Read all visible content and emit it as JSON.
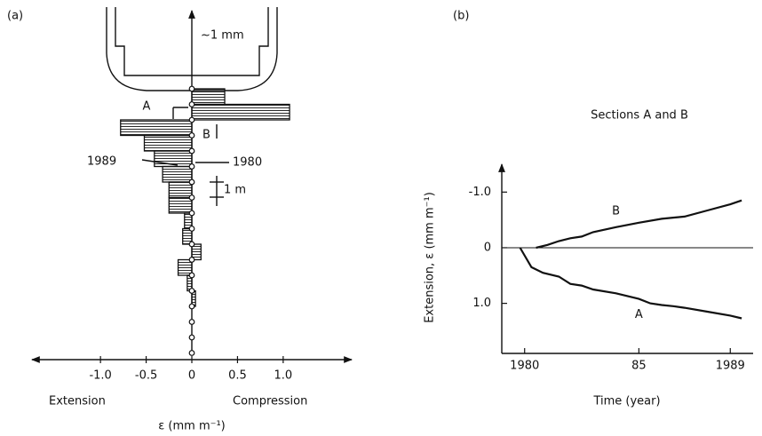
{
  "chart_data": [
    {
      "type": "hbar",
      "panel": "(a)",
      "xlabel": "ε (mm m⁻¹)",
      "annotations": [
        "~1 mm",
        "A",
        "B",
        "1989",
        "1980",
        "1 m",
        "Extension",
        "Compression"
      ],
      "categories": [
        null,
        null,
        null,
        null,
        null,
        null,
        null,
        null,
        null,
        null,
        null,
        null,
        null,
        null
      ],
      "values": [
        0.36,
        1.07,
        -0.78,
        -0.52,
        -0.41,
        -0.32,
        -0.25,
        -0.25,
        -0.08,
        -0.1,
        0.1,
        -0.15,
        -0.05,
        0.04
      ],
      "color": "#111111",
      "xlim": [
        -1.75,
        1.75
      ],
      "xticks": [
        {
          "value": -1,
          "label": "-1.0"
        },
        -0.5,
        0,
        0.5,
        {
          "value": 1,
          "label": "1.0"
        }
      ]
    },
    {
      "type": "line",
      "panel": "(b)",
      "title": "Sections A and B",
      "xlabel": "Time (year)",
      "ylabel": "Extension, ε (mm m⁻¹)",
      "series": [
        {
          "name": "B",
          "color": "#111111",
          "x": [
            1980.5,
            1981,
            1981.5,
            1982,
            1982.5,
            1983,
            1984,
            1985,
            1986,
            1987,
            1988,
            1989,
            1989.5
          ],
          "values": [
            0,
            -0.05,
            -0.12,
            -0.17,
            -0.2,
            -0.28,
            -0.37,
            -0.45,
            -0.52,
            -0.56,
            -0.67,
            -0.78,
            -0.85
          ]
        },
        {
          "name": "A",
          "color": "#111111",
          "x": [
            1979.8,
            1980.3,
            1980.8,
            1981.5,
            1982,
            1982.5,
            1983,
            1984,
            1985,
            1985.5,
            1986,
            1986.5,
            1987,
            1988,
            1989,
            1989.5
          ],
          "values": [
            0,
            0.35,
            0.45,
            0.52,
            0.65,
            0.68,
            0.75,
            0.82,
            0.92,
            1.0,
            1.03,
            1.05,
            1.08,
            1.15,
            1.22,
            1.27
          ]
        }
      ],
      "xlim": [
        1979,
        1990
      ],
      "xticks": [
        1980,
        {
          "value": 1985,
          "label": "85"
        },
        1989
      ],
      "ylim": [
        1.9,
        -1.5
      ],
      "yticks": [
        {
          "value": -1,
          "label": "-1.0"
        },
        0,
        {
          "value": 1,
          "label": "1.0"
        }
      ]
    }
  ]
}
